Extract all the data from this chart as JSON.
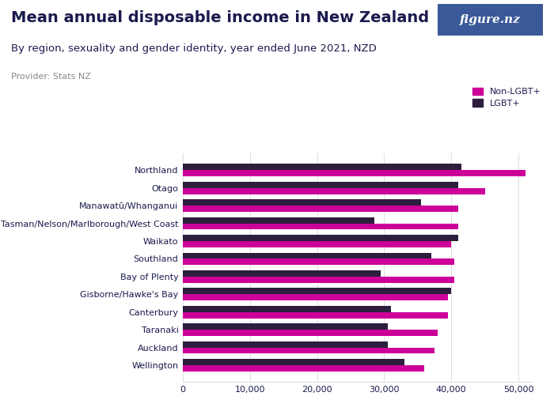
{
  "title": "Mean annual disposable income in New Zealand",
  "subtitle": "By region, sexuality and gender identity, year ended June 2021, NZD",
  "provider": "Provider: Stats NZ",
  "regions": [
    "Wellington",
    "Auckland",
    "Taranaki",
    "Canterbury",
    "Gisborne/Hawke's Bay",
    "Bay of Plenty",
    "Southland",
    "Waikato",
    "Tasman/Nelson/Marlborough/West Coast",
    "Manawatū/Whanganui",
    "Otago",
    "Northland"
  ],
  "non_lgbt_values": [
    51000,
    45000,
    41000,
    41000,
    40000,
    40500,
    40500,
    39500,
    39500,
    38000,
    37500,
    36000
  ],
  "lgbt_values": [
    41500,
    41000,
    35500,
    28500,
    41000,
    37000,
    29500,
    40000,
    31000,
    30500,
    30500,
    33000
  ],
  "non_lgbt_color": "#cc0099",
  "lgbt_color": "#2d1e3e",
  "background_color": "#ffffff",
  "logo_bg_color": "#3b5998",
  "xlim": [
    0,
    52000
  ],
  "xticks": [
    0,
    10000,
    20000,
    30000,
    40000,
    50000
  ],
  "xtick_labels": [
    "0",
    "10,000",
    "20,000",
    "30,000",
    "40,000",
    "50,000"
  ],
  "title_fontsize": 14,
  "subtitle_fontsize": 9.5,
  "provider_fontsize": 8,
  "label_fontsize": 8,
  "tick_fontsize": 8,
  "legend_labels": [
    "Non-LGBT+",
    "LGBT+"
  ],
  "title_color": "#1a1a4e",
  "subtitle_color": "#1a1a4e",
  "provider_color": "#888888",
  "label_color": "#1a1a4e",
  "tick_color": "#1a1a4e",
  "grid_color": "#dddddd"
}
